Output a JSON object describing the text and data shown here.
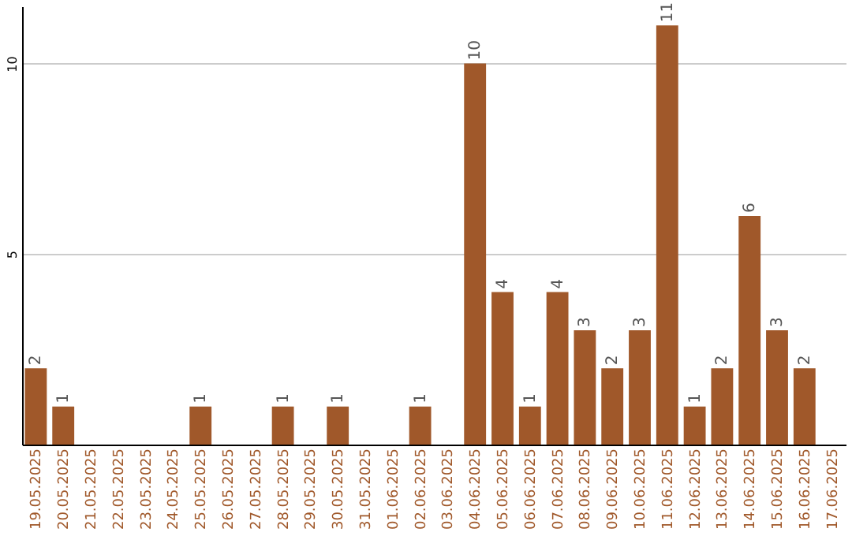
{
  "chart_data": {
    "type": "bar",
    "categories": [
      "19.05.2025",
      "20.05.2025",
      "21.05.2025",
      "22.05.2025",
      "23.05.2025",
      "24.05.2025",
      "25.05.2025",
      "26.05.2025",
      "27.05.2025",
      "28.05.2025",
      "29.05.2025",
      "30.05.2025",
      "31.05.2025",
      "01.06.2025",
      "02.06.2025",
      "03.06.2025",
      "04.06.2025",
      "05.06.2025",
      "06.06.2025",
      "07.06.2025",
      "08.06.2025",
      "09.06.2025",
      "10.06.2025",
      "11.06.2025",
      "12.06.2025",
      "13.06.2025",
      "14.06.2025",
      "15.06.2025",
      "16.06.2025",
      "17.06.2025"
    ],
    "values": [
      2,
      1,
      0,
      0,
      0,
      0,
      1,
      0,
      0,
      1,
      0,
      1,
      0,
      0,
      1,
      0,
      10,
      4,
      1,
      4,
      3,
      2,
      3,
      11,
      1,
      2,
      6,
      3,
      2,
      0
    ],
    "value_labels": [
      "2",
      "1",
      null,
      null,
      null,
      null,
      "1",
      null,
      null,
      "1",
      null,
      "1",
      null,
      null,
      "1",
      null,
      "10",
      "4",
      "1",
      "4",
      "3",
      "2",
      "3",
      "11",
      "1",
      "2",
      "6",
      "3",
      "2",
      null
    ],
    "color": "#a0582a",
    "ylim": [
      0,
      11.5
    ],
    "yticks": [
      5,
      10
    ],
    "grid": "y"
  }
}
